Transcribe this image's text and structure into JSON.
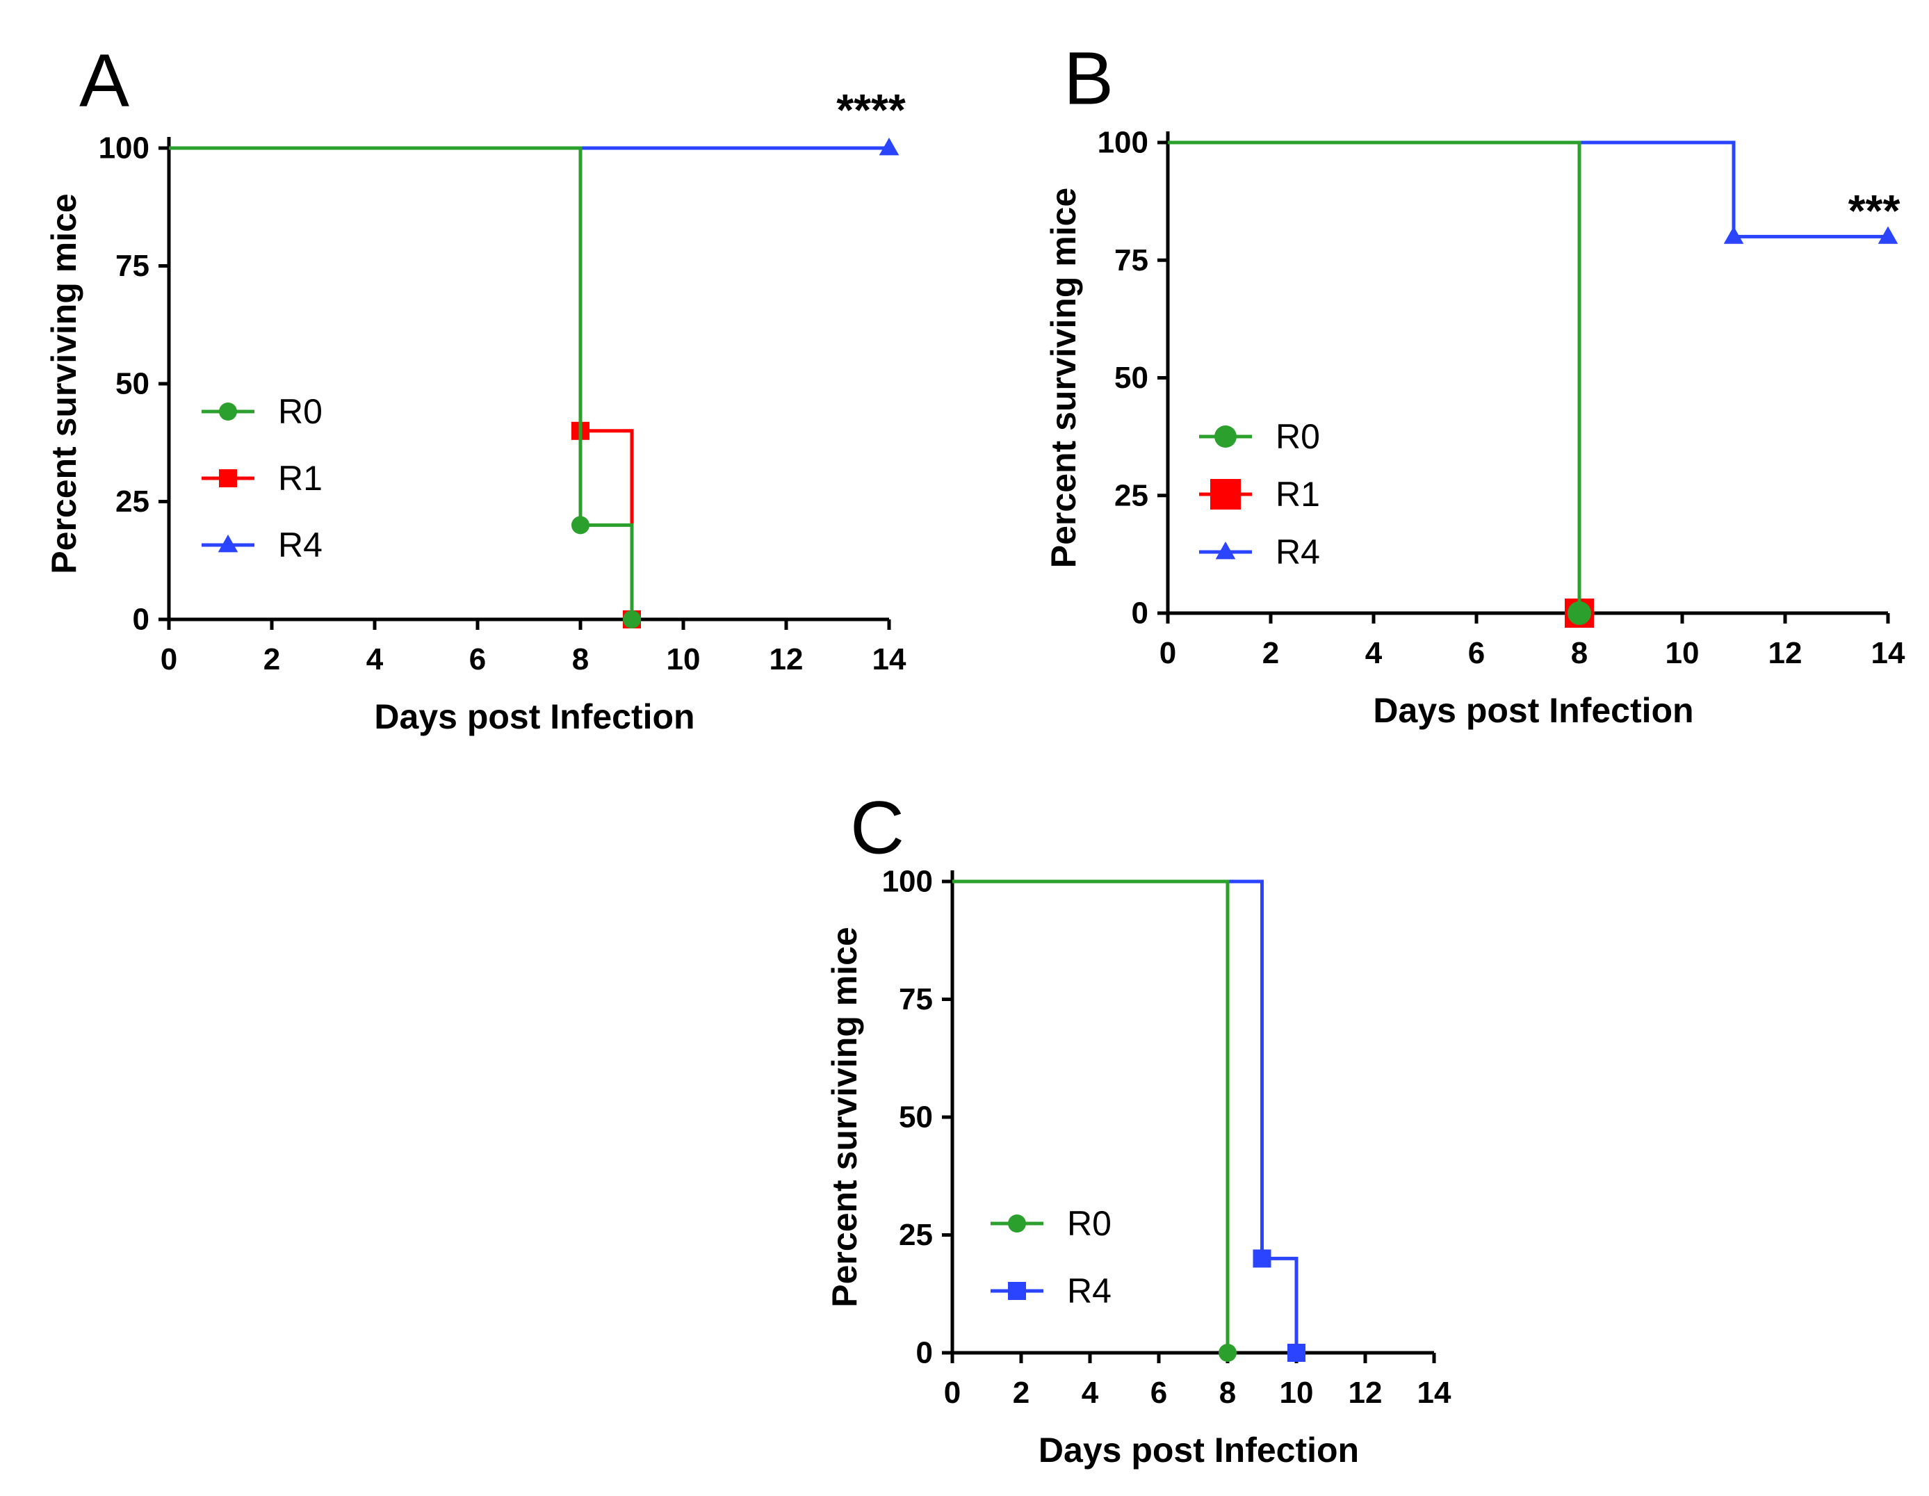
{
  "chart_data": [
    {
      "panel": "A",
      "type": "line",
      "step": "survival",
      "xlabel": "Days post Infection",
      "ylabel": "Percent surviving mice",
      "xlim": [
        0,
        14
      ],
      "ylim": [
        0,
        100
      ],
      "x_ticks": [
        "0",
        "2",
        "4",
        "6",
        "8",
        "10",
        "12",
        "14"
      ],
      "y_ticks": [
        "0",
        "25",
        "50",
        "75",
        "100"
      ],
      "legend_position": "left",
      "annotation": "****",
      "series": [
        {
          "name": "R0",
          "color": "#2ca02c",
          "marker": "circle",
          "x": [
            0,
            8,
            9
          ],
          "y": [
            100,
            20,
            0
          ],
          "marked": [
            false,
            true,
            true
          ]
        },
        {
          "name": "R1",
          "color": "#ff0000",
          "marker": "square",
          "x": [
            0,
            8,
            9
          ],
          "y": [
            100,
            40,
            0
          ],
          "marked": [
            false,
            true,
            true
          ]
        },
        {
          "name": "R4",
          "color": "#2a44ff",
          "marker": "triangle",
          "x": [
            0,
            14
          ],
          "y": [
            100,
            100
          ],
          "marked": [
            false,
            true
          ]
        }
      ]
    },
    {
      "panel": "B",
      "type": "line",
      "step": "survival",
      "xlabel": "Days post Infection",
      "ylabel": "Percent surviving mice",
      "xlim": [
        0,
        14
      ],
      "ylim": [
        0,
        100
      ],
      "x_ticks": [
        "0",
        "2",
        "4",
        "6",
        "8",
        "10",
        "12",
        "14"
      ],
      "y_ticks": [
        "0",
        "25",
        "50",
        "75",
        "100"
      ],
      "legend_position": "left",
      "annotation": "***",
      "series": [
        {
          "name": "R0",
          "color": "#2ca02c",
          "marker": "circle",
          "x": [
            0,
            8
          ],
          "y": [
            100,
            0
          ],
          "marked": [
            false,
            true
          ]
        },
        {
          "name": "R1",
          "color": "#ff0000",
          "marker": "square",
          "x": [
            0,
            8
          ],
          "y": [
            100,
            0
          ],
          "marked": [
            false,
            true
          ]
        },
        {
          "name": "R4",
          "color": "#2a44ff",
          "marker": "triangle",
          "x": [
            0,
            11,
            14
          ],
          "y": [
            100,
            80,
            80
          ],
          "marked": [
            false,
            true,
            true
          ]
        }
      ]
    },
    {
      "panel": "C",
      "type": "line",
      "step": "survival",
      "xlabel": "Days post Infection",
      "ylabel": "Percent surviving mice",
      "xlim": [
        0,
        14
      ],
      "ylim": [
        0,
        100
      ],
      "x_ticks": [
        "0",
        "2",
        "4",
        "6",
        "8",
        "10",
        "12",
        "14"
      ],
      "y_ticks": [
        "0",
        "25",
        "50",
        "75",
        "100"
      ],
      "legend_position": "left",
      "annotation": "",
      "series": [
        {
          "name": "R0",
          "color": "#2ca02c",
          "marker": "circle",
          "x": [
            0,
            8
          ],
          "y": [
            100,
            0
          ],
          "marked": [
            false,
            true
          ]
        },
        {
          "name": "R4",
          "color": "#2a44ff",
          "marker": "square",
          "x": [
            0,
            9,
            10
          ],
          "y": [
            100,
            20,
            0
          ],
          "marked": [
            false,
            true,
            true
          ]
        }
      ]
    }
  ]
}
